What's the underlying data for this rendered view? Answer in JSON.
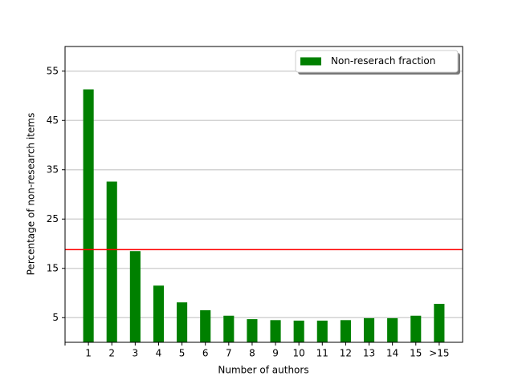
{
  "chart_data": {
    "type": "bar",
    "xlabel": "Number of authors",
    "ylabel": "Percentage of non-research items",
    "categories": [
      null,
      "1",
      "2",
      "3",
      "4",
      "5",
      "6",
      "7",
      "8",
      "9",
      "10",
      "11",
      "12",
      "13",
      "14",
      "15",
      ">15"
    ],
    "series": [
      {
        "name": "Non-reserach fraction",
        "color": "#008000",
        "values": [
          null,
          51.3,
          32.6,
          18.5,
          11.5,
          8.1,
          6.5,
          5.4,
          4.7,
          4.5,
          4.4,
          4.4,
          4.5,
          4.9,
          4.9,
          5.4,
          7.8
        ]
      }
    ],
    "reference_line": {
      "value": 18.8,
      "color": "#ff0000"
    },
    "ylim": [
      0,
      60
    ],
    "yticks": [
      5,
      15,
      25,
      35,
      45,
      55
    ],
    "grid": true,
    "legend": "upper right"
  }
}
